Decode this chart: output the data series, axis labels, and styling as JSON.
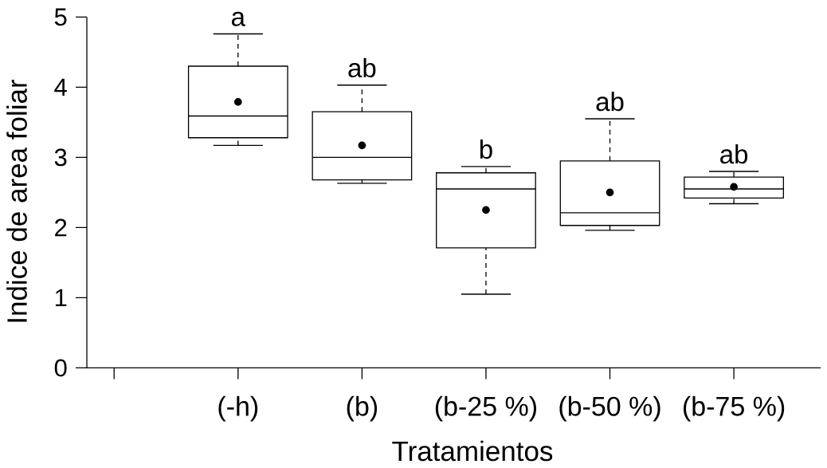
{
  "chart_data": {
    "type": "box",
    "xlabel": "Tratamientos",
    "ylabel": "Indice de area foliar",
    "categories": [
      null,
      "(-h)",
      "(b)",
      "(b-25 %)",
      "(b-50 %)",
      "(b-75 %)"
    ],
    "boxes": [
      null,
      {
        "low": 3.17,
        "q1": 3.28,
        "median": 3.59,
        "q3": 4.3,
        "high": 4.76,
        "mean": 3.79
      },
      {
        "low": 2.63,
        "q1": 2.68,
        "median": 3.0,
        "q3": 3.65,
        "high": 4.03,
        "mean": 3.17
      },
      {
        "low": 1.05,
        "q1": 1.71,
        "median": 2.55,
        "q3": 2.78,
        "high": 2.87,
        "mean": 2.25
      },
      {
        "low": 1.96,
        "q1": 2.03,
        "median": 2.21,
        "q3": 2.95,
        "high": 3.55,
        "mean": 2.5
      },
      {
        "low": 2.34,
        "q1": 2.42,
        "median": 2.55,
        "q3": 2.72,
        "high": 2.8,
        "mean": 2.58
      }
    ],
    "color": "#000000",
    "marker": "circle",
    "ylim": [
      0,
      5
    ],
    "yticks": [
      0,
      1,
      2,
      3,
      4,
      5
    ],
    "annotations": [
      "a",
      "ab",
      "b",
      "ab",
      "ab"
    ]
  }
}
